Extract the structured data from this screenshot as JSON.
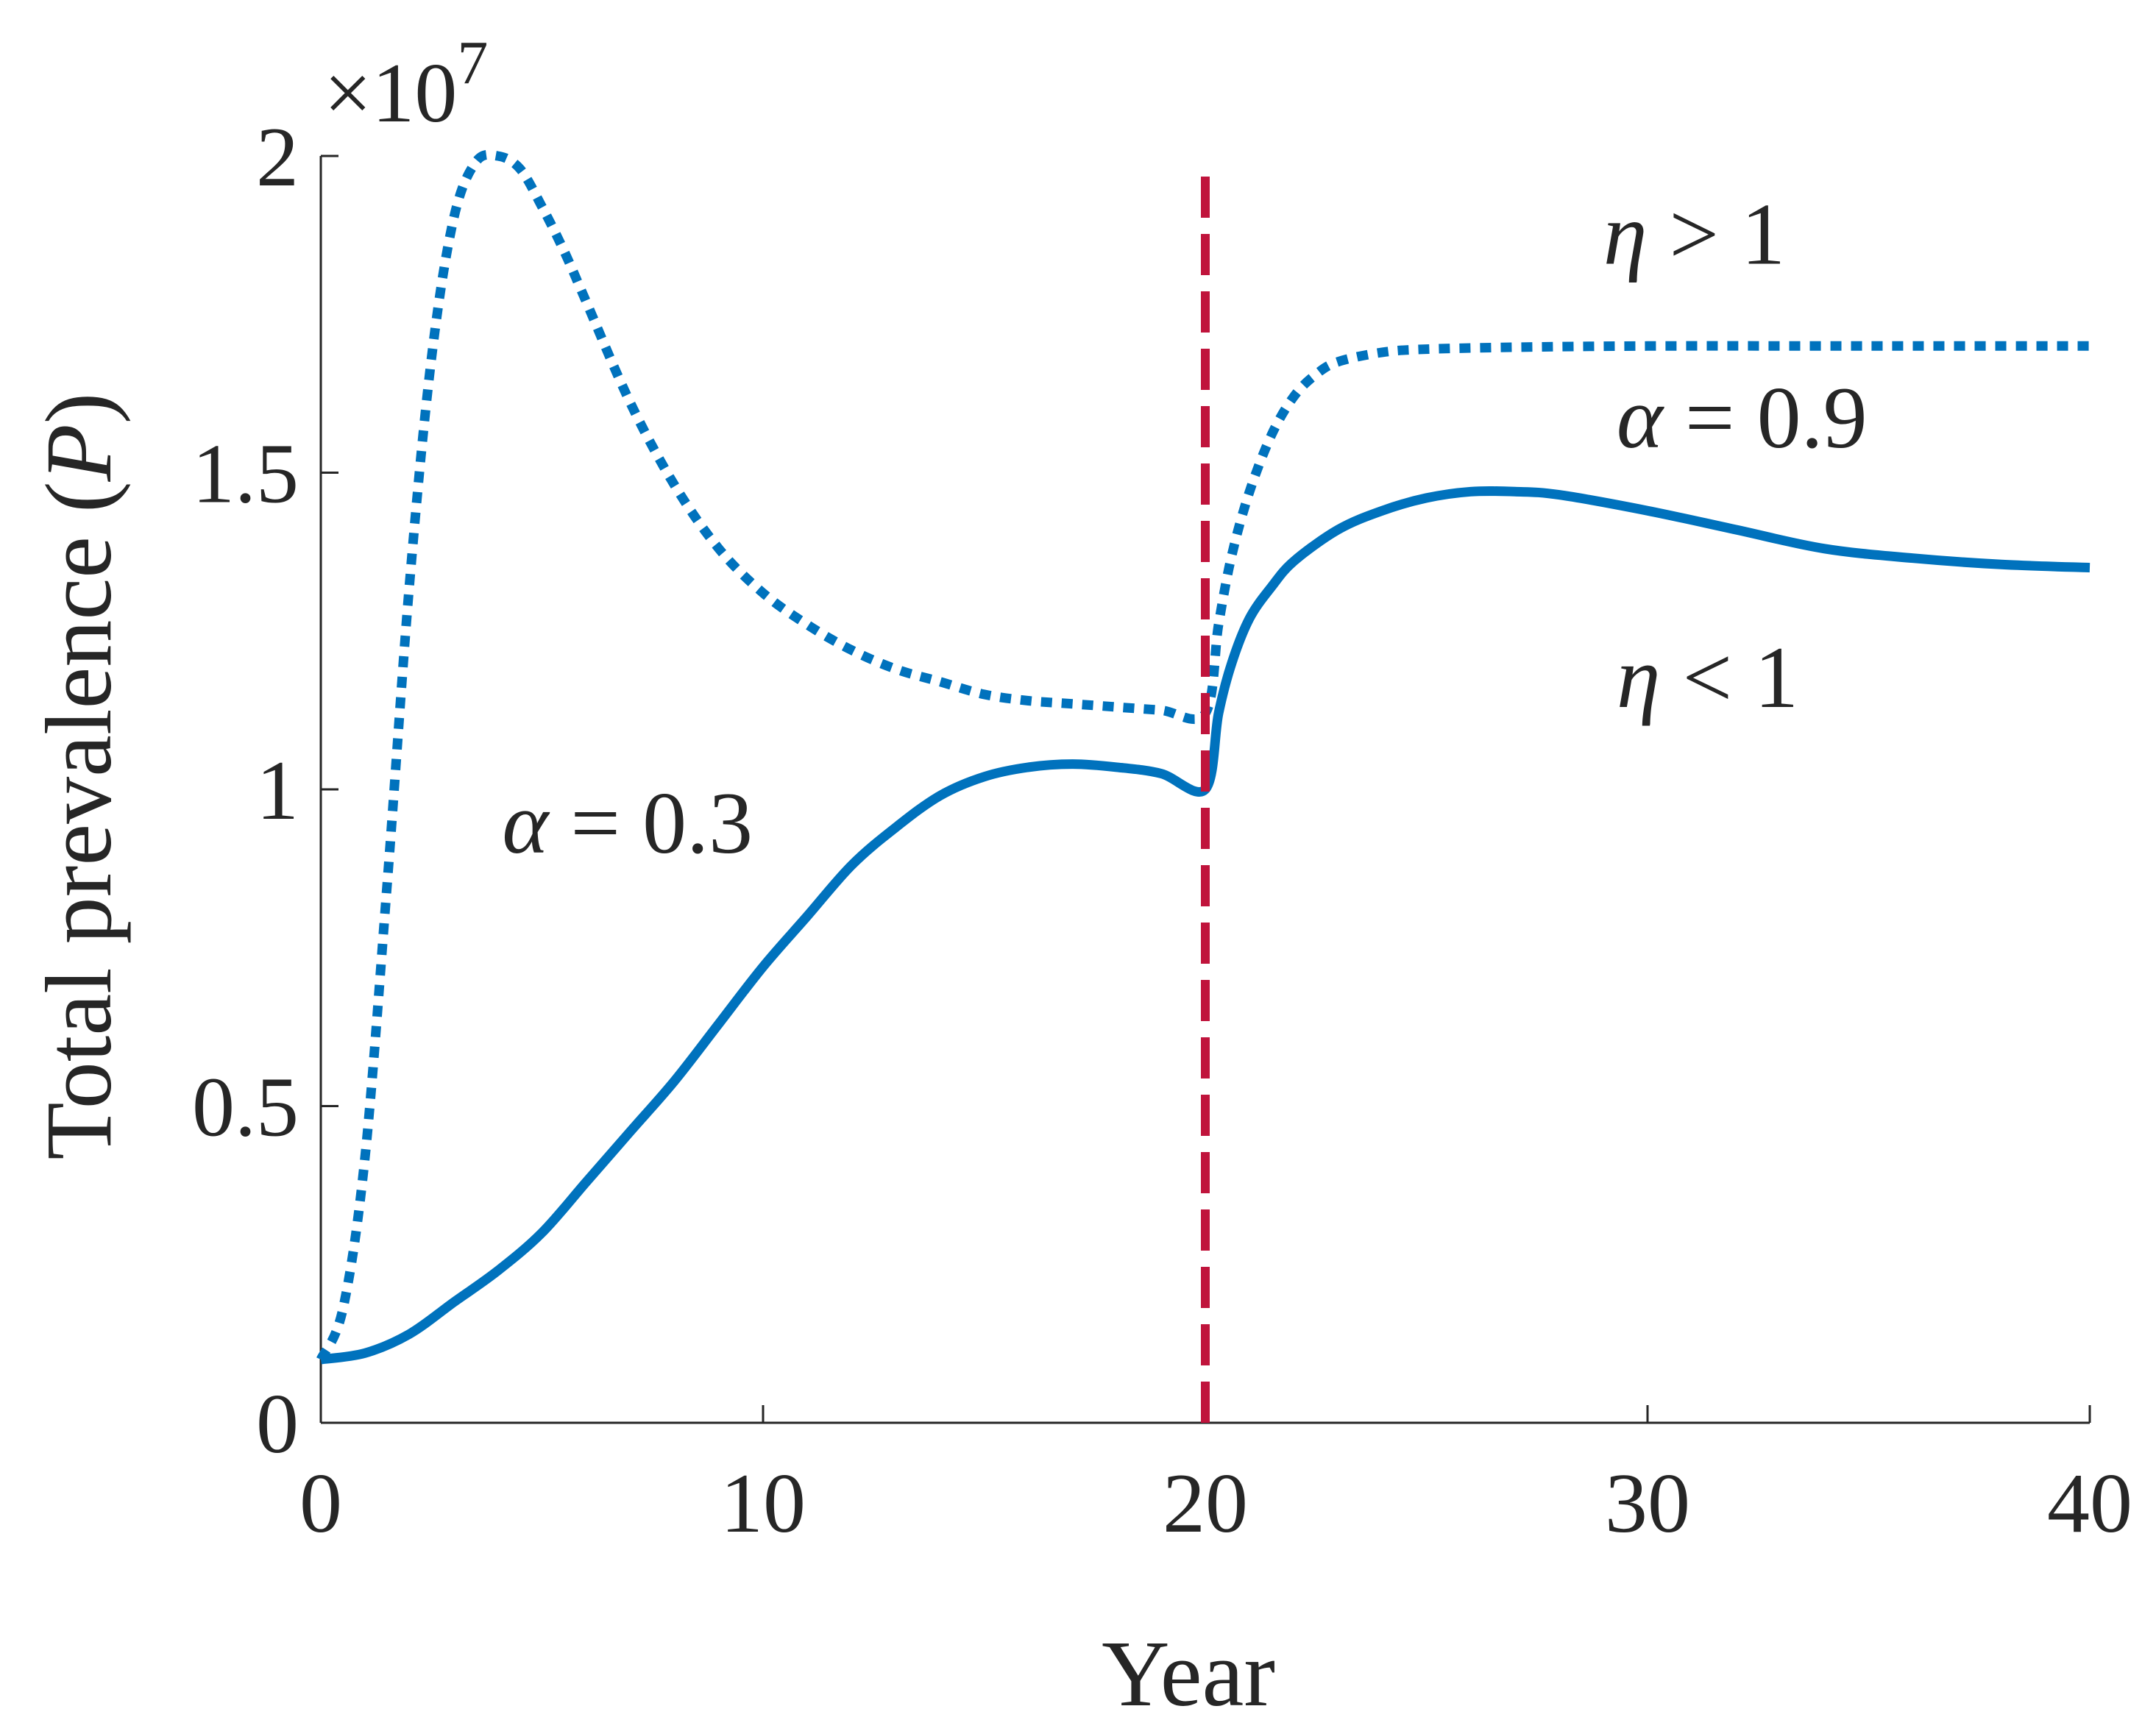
{
  "chart_data": {
    "type": "line",
    "xlabel": "Year",
    "ylabel": "Total prevalence (P)",
    "ylabel_text": "Total prevalence (",
    "ylabel_symbol": "P",
    "ylabel_close": ")",
    "y_multiplier": "×10",
    "y_multiplier_exp": "7",
    "xlim": [
      0,
      40
    ],
    "ylim": [
      0,
      2
    ],
    "x_ticks": [
      0,
      10,
      20,
      30,
      40
    ],
    "x_tick_labels": [
      "0",
      "10",
      "20",
      "30",
      "40"
    ],
    "y_ticks": [
      0,
      0.5,
      1,
      1.5,
      2
    ],
    "y_tick_labels": [
      "0",
      "0.5",
      "1",
      "1.5",
      "2"
    ],
    "grid": false,
    "legend": "none",
    "series": [
      {
        "style": "dotted",
        "color": "#0072BD",
        "x": [
          0,
          0.5,
          1,
          1.5,
          2,
          2.5,
          3,
          3.5,
          4,
          4.5,
          5,
          5.5,
          6,
          7,
          8,
          9,
          10,
          11,
          12,
          13,
          14,
          15,
          16,
          17,
          18,
          19,
          20,
          20.3,
          20.6,
          21,
          21.5,
          22,
          22.5,
          23,
          24,
          25,
          27,
          30,
          35,
          40
        ],
        "y": [
          0.1,
          0.18,
          0.42,
          0.85,
          1.32,
          1.68,
          1.9,
          1.99,
          2.0,
          1.98,
          1.92,
          1.85,
          1.77,
          1.61,
          1.48,
          1.38,
          1.31,
          1.26,
          1.22,
          1.19,
          1.17,
          1.15,
          1.14,
          1.135,
          1.13,
          1.125,
          1.12,
          1.26,
          1.37,
          1.47,
          1.56,
          1.62,
          1.655,
          1.675,
          1.69,
          1.695,
          1.698,
          1.7,
          1.7,
          1.7
        ]
      },
      {
        "style": "solid",
        "color": "#0072BD",
        "x": [
          0,
          1,
          2,
          3,
          4,
          5,
          6,
          7,
          8,
          9,
          10,
          11,
          12,
          13,
          14,
          15,
          16,
          17,
          18,
          19,
          20,
          20.3,
          20.6,
          21,
          21.5,
          22,
          23,
          24,
          25,
          26,
          27,
          28,
          30,
          32,
          34,
          36,
          38,
          40
        ],
        "y": [
          0.1,
          0.11,
          0.14,
          0.19,
          0.24,
          0.3,
          0.38,
          0.46,
          0.54,
          0.63,
          0.72,
          0.8,
          0.88,
          0.94,
          0.99,
          1.02,
          1.035,
          1.04,
          1.035,
          1.025,
          1.0,
          1.12,
          1.2,
          1.27,
          1.32,
          1.36,
          1.41,
          1.44,
          1.46,
          1.47,
          1.47,
          1.465,
          1.44,
          1.41,
          1.38,
          1.365,
          1.355,
          1.35
        ]
      },
      {
        "style": "dashed",
        "color": "#C0143C",
        "x": [
          20,
          20
        ],
        "y": [
          0,
          1.98
        ]
      }
    ],
    "annotations": [
      {
        "symbol": "η",
        "text": " > 1",
        "x": 29,
        "y": 1.83
      },
      {
        "symbol": "α",
        "text": " = 0.9",
        "x": 29.3,
        "y": 1.54
      },
      {
        "symbol": "η",
        "text": " < 1",
        "x": 29.3,
        "y": 1.13
      },
      {
        "symbol": "α",
        "text": " = 0.3",
        "x": 4.1,
        "y": 0.9
      }
    ]
  }
}
